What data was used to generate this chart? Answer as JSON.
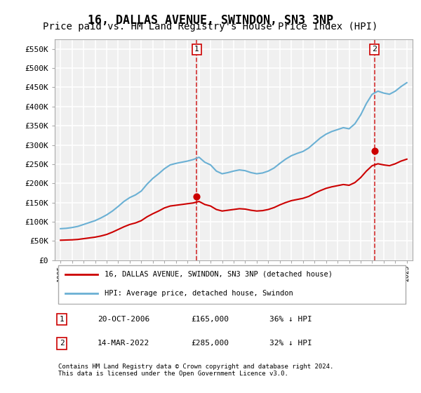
{
  "title": "16, DALLAS AVENUE, SWINDON, SN3 3NP",
  "subtitle": "Price paid vs. HM Land Registry's House Price Index (HPI)",
  "title_fontsize": 12,
  "subtitle_fontsize": 10,
  "ylabel_ticks": [
    "£0",
    "£50K",
    "£100K",
    "£150K",
    "£200K",
    "£250K",
    "£300K",
    "£350K",
    "£400K",
    "£450K",
    "£500K",
    "£550K"
  ],
  "ytick_values": [
    0,
    50000,
    100000,
    150000,
    200000,
    250000,
    300000,
    350000,
    400000,
    450000,
    500000,
    550000
  ],
  "ylim": [
    0,
    575000
  ],
  "xlim_start": 1994.5,
  "xlim_end": 2025.5,
  "background_color": "#ffffff",
  "plot_bg_color": "#f0f0f0",
  "grid_color": "#ffffff",
  "hpi_color": "#6ab0d4",
  "price_color": "#cc0000",
  "annotation_line_color": "#cc0000",
  "sale1_year": 2006.8,
  "sale1_price": 165000,
  "sale2_year": 2022.2,
  "sale2_price": 285000,
  "legend_label_red": "16, DALLAS AVENUE, SWINDON, SN3 3NP (detached house)",
  "legend_label_blue": "HPI: Average price, detached house, Swindon",
  "footer": "Contains HM Land Registry data © Crown copyright and database right 2024.\nThis data is licensed under the Open Government Licence v3.0.",
  "table_rows": [
    {
      "num": "1",
      "date": "20-OCT-2006",
      "price": "£165,000",
      "hpi": "36% ↓ HPI"
    },
    {
      "num": "2",
      "date": "14-MAR-2022",
      "price": "£285,000",
      "hpi": "32% ↓ HPI"
    }
  ],
  "hpi_x": [
    1995,
    1995.5,
    1996,
    1996.5,
    1997,
    1997.5,
    1998,
    1998.5,
    1999,
    1999.5,
    2000,
    2000.5,
    2001,
    2001.5,
    2002,
    2002.5,
    2003,
    2003.5,
    2004,
    2004.5,
    2005,
    2005.5,
    2006,
    2006.5,
    2007,
    2007.5,
    2008,
    2008.5,
    2009,
    2009.5,
    2010,
    2010.5,
    2011,
    2011.5,
    2012,
    2012.5,
    2013,
    2013.5,
    2014,
    2014.5,
    2015,
    2015.5,
    2016,
    2016.5,
    2017,
    2017.5,
    2018,
    2018.5,
    2019,
    2019.5,
    2020,
    2020.5,
    2021,
    2021.5,
    2022,
    2022.5,
    2023,
    2023.5,
    2024,
    2024.5,
    2025
  ],
  "hpi_y": [
    82000,
    83000,
    85000,
    88000,
    93000,
    98000,
    103000,
    110000,
    118000,
    128000,
    140000,
    153000,
    163000,
    170000,
    180000,
    198000,
    213000,
    225000,
    238000,
    248000,
    252000,
    255000,
    258000,
    262000,
    268000,
    255000,
    248000,
    232000,
    225000,
    228000,
    232000,
    235000,
    233000,
    228000,
    225000,
    227000,
    232000,
    240000,
    252000,
    263000,
    272000,
    278000,
    283000,
    292000,
    305000,
    318000,
    328000,
    335000,
    340000,
    345000,
    342000,
    355000,
    378000,
    408000,
    432000,
    440000,
    435000,
    432000,
    440000,
    452000,
    462000
  ],
  "price_x": [
    1995,
    1995.5,
    1996,
    1996.5,
    1997,
    1997.5,
    1998,
    1998.5,
    1999,
    1999.5,
    2000,
    2000.5,
    2001,
    2001.5,
    2002,
    2002.5,
    2003,
    2003.5,
    2004,
    2004.5,
    2005,
    2005.5,
    2006,
    2006.5,
    2007,
    2007.5,
    2008,
    2008.5,
    2009,
    2009.5,
    2010,
    2010.5,
    2011,
    2011.5,
    2012,
    2012.5,
    2013,
    2013.5,
    2014,
    2014.5,
    2015,
    2015.5,
    2016,
    2016.5,
    2017,
    2017.5,
    2018,
    2018.5,
    2019,
    2019.5,
    2020,
    2020.5,
    2021,
    2021.5,
    2022,
    2022.5,
    2023,
    2023.5,
    2024,
    2024.5,
    2025
  ],
  "price_y": [
    52000,
    52500,
    53000,
    54000,
    56000,
    58000,
    60000,
    63000,
    67000,
    73000,
    80000,
    87000,
    93000,
    97000,
    103000,
    113000,
    121000,
    128000,
    136000,
    141000,
    143000,
    145000,
    147000,
    149000,
    153000,
    145000,
    141000,
    132000,
    128000,
    130000,
    132000,
    134000,
    133000,
    130000,
    128000,
    129000,
    132000,
    137000,
    144000,
    150000,
    155000,
    158000,
    161000,
    166000,
    174000,
    181000,
    187000,
    191000,
    194000,
    197000,
    195000,
    202000,
    215000,
    232000,
    246000,
    251000,
    248000,
    246000,
    251000,
    258000,
    263000
  ]
}
